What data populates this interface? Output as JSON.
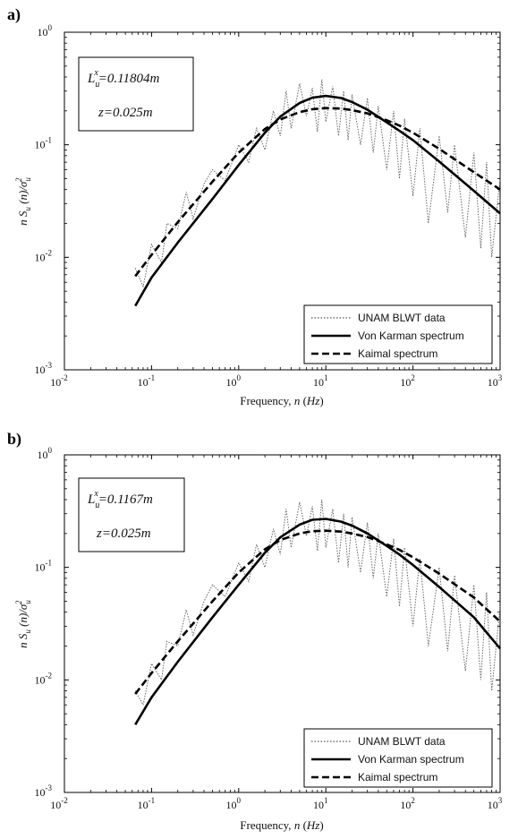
{
  "chart_data": [
    {
      "panel": "a)",
      "type": "line",
      "xscale": "log",
      "yscale": "log",
      "xlim": [
        0.01,
        1000
      ],
      "ylim": [
        0.001,
        1
      ],
      "xlabel": "Frequency, n (Hz)",
      "ylabel": "n S_u (n)/σ_u^2",
      "annotation": {
        "Lux": "0.11804m",
        "z": "z=0.025m"
      },
      "legend_position": "bottom-right",
      "grid": false,
      "legend": [
        "UNAM BLWT data",
        "Von Karman spectrum",
        "Kaimal spectrum"
      ],
      "series": [
        {
          "name": "Von Karman spectrum",
          "style": "solid",
          "x": [
            0.065,
            0.1,
            0.2,
            0.5,
            1,
            2,
            3,
            5,
            7,
            10,
            15,
            20,
            30,
            50,
            70,
            100,
            200,
            500,
            1000
          ],
          "y": [
            0.0037,
            0.0066,
            0.0135,
            0.033,
            0.066,
            0.128,
            0.178,
            0.235,
            0.262,
            0.272,
            0.26,
            0.24,
            0.205,
            0.158,
            0.133,
            0.11,
            0.071,
            0.039,
            0.0245
          ]
        },
        {
          "name": "Kaimal spectrum",
          "style": "dashed",
          "x": [
            0.065,
            0.1,
            0.2,
            0.5,
            1,
            2,
            3,
            5,
            7,
            10,
            15,
            20,
            30,
            50,
            70,
            100,
            200,
            500,
            1000
          ],
          "y": [
            0.0068,
            0.0105,
            0.0205,
            0.047,
            0.085,
            0.138,
            0.168,
            0.195,
            0.207,
            0.212,
            0.21,
            0.203,
            0.19,
            0.165,
            0.148,
            0.128,
            0.092,
            0.057,
            0.04
          ]
        },
        {
          "name": "UNAM BLWT data",
          "style": "dotted",
          "x": [
            0.065,
            0.08,
            0.1,
            0.13,
            0.15,
            0.2,
            0.25,
            0.3,
            0.4,
            0.5,
            0.7,
            1,
            1.3,
            1.6,
            2,
            2.5,
            3,
            3.5,
            4,
            5,
            6,
            7,
            8,
            9,
            10,
            12,
            14,
            16,
            18,
            20,
            25,
            30,
            35,
            40,
            50,
            60,
            70,
            80,
            100,
            120,
            150,
            200,
            250,
            300,
            400,
            500,
            600,
            700,
            800,
            1000
          ],
          "y": [
            0.008,
            0.0055,
            0.013,
            0.009,
            0.02,
            0.018,
            0.038,
            0.022,
            0.045,
            0.06,
            0.048,
            0.1,
            0.07,
            0.14,
            0.09,
            0.2,
            0.12,
            0.3,
            0.14,
            0.35,
            0.18,
            0.32,
            0.13,
            0.38,
            0.16,
            0.33,
            0.12,
            0.3,
            0.11,
            0.28,
            0.1,
            0.26,
            0.085,
            0.22,
            0.06,
            0.2,
            0.05,
            0.17,
            0.035,
            0.14,
            0.02,
            0.12,
            0.025,
            0.1,
            0.015,
            0.085,
            0.012,
            0.07,
            0.01,
            0.05
          ]
        }
      ]
    },
    {
      "panel": "b)",
      "type": "line",
      "xscale": "log",
      "yscale": "log",
      "xlim": [
        0.01,
        1000
      ],
      "ylim": [
        0.001,
        1
      ],
      "xlabel": "Frequency, n (Hz)",
      "ylabel": "n S_u (n)/σ_u^2",
      "annotation": {
        "Lux": "0.1167m",
        "z": "z=0.025m"
      },
      "legend_position": "bottom-right",
      "grid": false,
      "legend": [
        "UNAM BLWT data",
        "Von Karman spectrum",
        "Kaimal spectrum"
      ],
      "series": [
        {
          "name": "Von Karman spectrum",
          "style": "solid",
          "x": [
            0.065,
            0.1,
            0.2,
            0.5,
            1,
            2,
            3,
            5,
            7,
            10,
            15,
            20,
            30,
            50,
            70,
            100,
            200,
            500,
            1000
          ],
          "y": [
            0.004,
            0.007,
            0.0145,
            0.036,
            0.07,
            0.135,
            0.185,
            0.24,
            0.265,
            0.27,
            0.255,
            0.235,
            0.2,
            0.155,
            0.13,
            0.105,
            0.067,
            0.036,
            0.019
          ]
        },
        {
          "name": "Kaimal spectrum",
          "style": "dashed",
          "x": [
            0.065,
            0.1,
            0.2,
            0.5,
            1,
            2,
            3,
            5,
            7,
            10,
            15,
            20,
            30,
            50,
            70,
            100,
            200,
            500,
            1000
          ],
          "y": [
            0.0075,
            0.0115,
            0.022,
            0.05,
            0.09,
            0.145,
            0.175,
            0.2,
            0.21,
            0.212,
            0.208,
            0.2,
            0.186,
            0.16,
            0.143,
            0.123,
            0.088,
            0.054,
            0.033
          ]
        },
        {
          "name": "UNAM BLWT data",
          "style": "dotted",
          "x": [
            0.065,
            0.08,
            0.1,
            0.13,
            0.15,
            0.2,
            0.25,
            0.3,
            0.4,
            0.5,
            0.7,
            1,
            1.3,
            1.6,
            2,
            2.5,
            3,
            3.5,
            4,
            5,
            6,
            7,
            8,
            9,
            10,
            12,
            14,
            16,
            18,
            20,
            25,
            30,
            35,
            40,
            50,
            60,
            70,
            80,
            100,
            120,
            150,
            200,
            250,
            300,
            400,
            500,
            600,
            700,
            800,
            1000
          ],
          "y": [
            0.008,
            0.006,
            0.014,
            0.01,
            0.022,
            0.02,
            0.042,
            0.025,
            0.05,
            0.07,
            0.055,
            0.11,
            0.075,
            0.16,
            0.1,
            0.22,
            0.13,
            0.33,
            0.15,
            0.38,
            0.19,
            0.35,
            0.14,
            0.4,
            0.15,
            0.33,
            0.11,
            0.3,
            0.1,
            0.28,
            0.09,
            0.25,
            0.08,
            0.2,
            0.055,
            0.18,
            0.045,
            0.15,
            0.03,
            0.12,
            0.02,
            0.1,
            0.018,
            0.085,
            0.012,
            0.07,
            0.01,
            0.06,
            0.008,
            0.045
          ]
        }
      ]
    }
  ]
}
